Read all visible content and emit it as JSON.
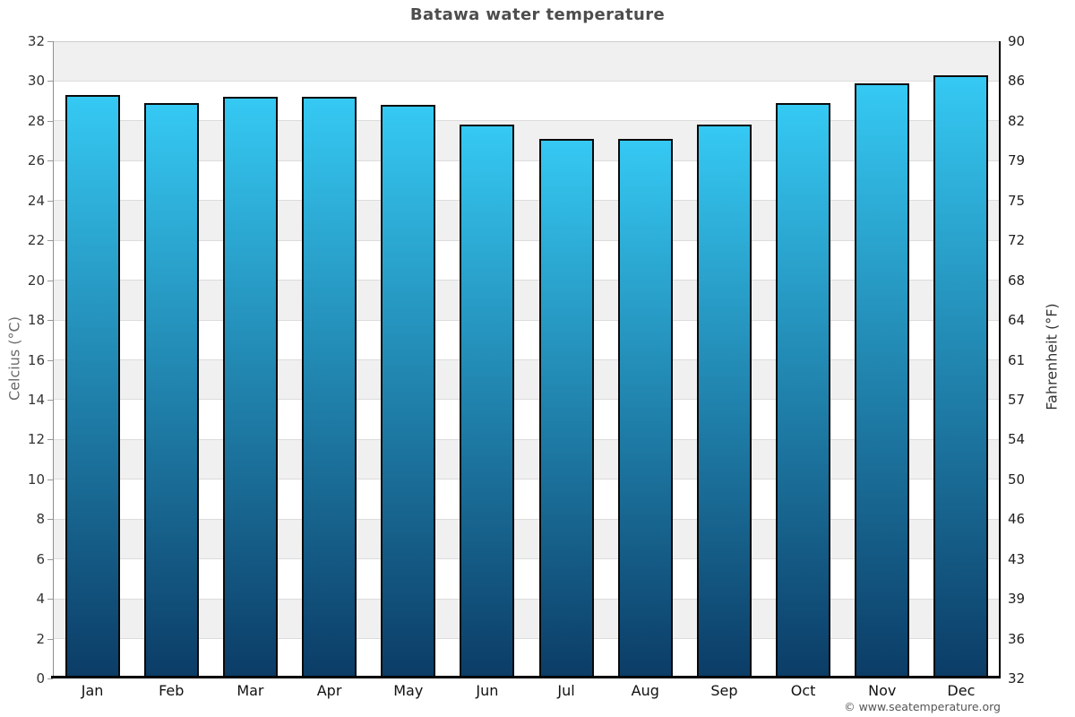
{
  "page": {
    "footer_link": "© www.seatemperature.org"
  },
  "chart_data": {
    "type": "bar",
    "title": "Batawa water temperature",
    "categories": [
      "Jan",
      "Feb",
      "Mar",
      "Apr",
      "May",
      "Jun",
      "Jul",
      "Aug",
      "Sep",
      "Oct",
      "Nov",
      "Dec"
    ],
    "series": [
      {
        "name": "Water temperature (°C)",
        "values": [
          29.3,
          28.9,
          29.2,
          29.2,
          28.8,
          27.8,
          27.1,
          27.1,
          27.8,
          28.9,
          29.9,
          30.3
        ]
      }
    ],
    "ylabel_left": "Celcius (°C)",
    "ylabel_right": "Fahrenheit (°F)",
    "ylim": [
      0,
      32
    ],
    "y_left_ticks": [
      32,
      30,
      28,
      26,
      24,
      22,
      20,
      18,
      16,
      14,
      12,
      10,
      8,
      6,
      4,
      2,
      0
    ],
    "y_right_ticks": [
      90,
      86,
      82,
      79,
      75,
      72,
      68,
      64,
      61,
      57,
      54,
      50,
      46,
      43,
      39,
      36,
      32
    ],
    "grid": "alternating horizontal bands every 2°C",
    "legend_position": "none",
    "colors": {
      "bar_gradient_top": "#35c9f3",
      "bar_gradient_bottom": "#0b3c66",
      "bar_border": "#0a0a0a",
      "band_gray": "#f0f0f0",
      "band_white": "#ffffff",
      "gridline": "#dcdcdc",
      "axis_bottom": "#000000",
      "title_text": "#4d4d4d",
      "tick_text": "#333333"
    }
  }
}
